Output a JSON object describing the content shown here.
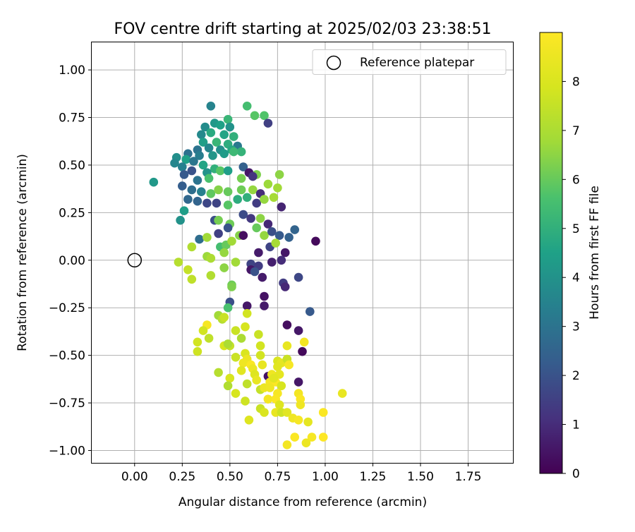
{
  "chart_data": {
    "type": "scatter",
    "title": "FOV centre drift starting at 2025/02/03 23:38:51",
    "xlabel": "Angular distance from reference (arcmin)",
    "ylabel": "Rotation from reference (arcmin)",
    "xlim": [
      -0.225,
      1.985
    ],
    "ylim": [
      -1.065,
      1.145
    ],
    "x_ticks": [
      0.0,
      0.25,
      0.5,
      0.75,
      1.0,
      1.25,
      1.5,
      1.75
    ],
    "x_tick_labels": [
      "0.00",
      "0.25",
      "0.50",
      "0.75",
      "1.00",
      "1.25",
      "1.50",
      "1.75"
    ],
    "y_ticks": [
      1.0,
      0.75,
      0.5,
      0.25,
      0.0,
      -0.25,
      -0.5,
      -0.75,
      -1.0
    ],
    "y_tick_labels": [
      "1.00",
      "0.75",
      "0.50",
      "0.25",
      "0.00",
      "−0.25",
      "−0.50",
      "−0.75",
      "−1.00"
    ],
    "grid": true,
    "legend": {
      "position": "top-right",
      "entries": [
        {
          "label": "Reference platepar",
          "marker": "open-circle"
        }
      ]
    },
    "reference_point": {
      "x": 0.0,
      "y": 0.0
    },
    "colorbar": {
      "label": "Hours from first FF file",
      "colormap": "viridis",
      "range": [
        0,
        9
      ],
      "ticks": [
        0,
        1,
        2,
        3,
        4,
        5,
        6,
        7,
        8
      ],
      "tick_labels": [
        "0",
        "1",
        "2",
        "3",
        "4",
        "5",
        "6",
        "7",
        "8"
      ]
    },
    "series": [
      {
        "name": "",
        "points": [
          [
            0.4,
            0.81,
            3.5
          ],
          [
            0.59,
            0.81,
            5.5
          ],
          [
            0.63,
            0.76,
            5.8
          ],
          [
            0.68,
            0.76,
            5.7
          ],
          [
            0.49,
            0.74,
            5.2
          ],
          [
            0.7,
            0.72,
            1.5
          ],
          [
            0.37,
            0.7,
            3.8
          ],
          [
            0.42,
            0.72,
            4.2
          ],
          [
            0.45,
            0.71,
            4.5
          ],
          [
            0.5,
            0.7,
            4.0
          ],
          [
            0.35,
            0.66,
            3.7
          ],
          [
            0.4,
            0.67,
            4.8
          ],
          [
            0.47,
            0.66,
            4.6
          ],
          [
            0.52,
            0.65,
            5.0
          ],
          [
            0.36,
            0.62,
            4.4
          ],
          [
            0.43,
            0.62,
            5.2
          ],
          [
            0.49,
            0.61,
            4.9
          ],
          [
            0.54,
            0.6,
            3.2
          ],
          [
            0.33,
            0.58,
            3.0
          ],
          [
            0.39,
            0.59,
            3.6
          ],
          [
            0.45,
            0.58,
            3.9
          ],
          [
            0.51,
            0.58,
            4.7
          ],
          [
            0.56,
            0.57,
            5.1
          ],
          [
            0.28,
            0.56,
            2.9
          ],
          [
            0.34,
            0.55,
            3.3
          ],
          [
            0.41,
            0.55,
            4.1
          ],
          [
            0.47,
            0.56,
            4.3
          ],
          [
            0.52,
            0.57,
            5.3
          ],
          [
            0.22,
            0.54,
            3.9
          ],
          [
            0.27,
            0.53,
            4.5
          ],
          [
            0.31,
            0.52,
            3.1
          ],
          [
            0.21,
            0.51,
            3.6
          ],
          [
            0.25,
            0.49,
            3.4
          ],
          [
            0.36,
            0.5,
            4.6
          ],
          [
            0.42,
            0.48,
            5.0
          ],
          [
            0.45,
            0.47,
            5.8
          ],
          [
            0.57,
            0.49,
            2.4
          ],
          [
            0.6,
            0.46,
            0.5
          ],
          [
            0.26,
            0.45,
            2.2
          ],
          [
            0.3,
            0.47,
            2.0
          ],
          [
            0.38,
            0.46,
            4.0
          ],
          [
            0.49,
            0.47,
            4.4
          ],
          [
            0.64,
            0.45,
            6.3
          ],
          [
            0.76,
            0.45,
            6.5
          ],
          [
            0.33,
            0.42,
            3.0
          ],
          [
            0.39,
            0.43,
            5.6
          ],
          [
            0.56,
            0.43,
            6.2
          ],
          [
            0.62,
            0.44,
            1.2
          ],
          [
            0.1,
            0.41,
            4.2
          ],
          [
            0.25,
            0.39,
            2.3
          ],
          [
            0.3,
            0.37,
            2.8
          ],
          [
            0.35,
            0.36,
            3.4
          ],
          [
            0.4,
            0.35,
            5.9
          ],
          [
            0.44,
            0.37,
            6.4
          ],
          [
            0.49,
            0.36,
            6.0
          ],
          [
            0.56,
            0.37,
            6.1
          ],
          [
            0.62,
            0.37,
            6.6
          ],
          [
            0.66,
            0.35,
            1.0
          ],
          [
            0.7,
            0.4,
            6.7
          ],
          [
            0.75,
            0.38,
            6.8
          ],
          [
            0.28,
            0.32,
            2.6
          ],
          [
            0.33,
            0.31,
            2.5
          ],
          [
            0.38,
            0.3,
            1.7
          ],
          [
            0.43,
            0.3,
            1.6
          ],
          [
            0.49,
            0.29,
            5.8
          ],
          [
            0.54,
            0.32,
            4.9
          ],
          [
            0.59,
            0.33,
            5.0
          ],
          [
            0.64,
            0.3,
            1.4
          ],
          [
            0.68,
            0.32,
            6.6
          ],
          [
            0.73,
            0.33,
            6.9
          ],
          [
            0.77,
            0.28,
            0.8
          ],
          [
            0.26,
            0.26,
            4.4
          ],
          [
            0.24,
            0.21,
            4.0
          ],
          [
            0.42,
            0.21,
            1.9
          ],
          [
            0.44,
            0.21,
            6.2
          ],
          [
            0.5,
            0.19,
            6.1
          ],
          [
            0.57,
            0.24,
            1.8
          ],
          [
            0.61,
            0.22,
            1.3
          ],
          [
            0.66,
            0.22,
            6.5
          ],
          [
            0.7,
            0.19,
            0.9
          ],
          [
            0.34,
            0.11,
            2.8
          ],
          [
            0.38,
            0.12,
            6.8
          ],
          [
            0.44,
            0.14,
            1.5
          ],
          [
            0.49,
            0.17,
            2.0
          ],
          [
            0.55,
            0.13,
            6.4
          ],
          [
            0.57,
            0.13,
            0.3
          ],
          [
            0.64,
            0.17,
            6.0
          ],
          [
            0.68,
            0.13,
            6.6
          ],
          [
            0.72,
            0.15,
            1.9
          ],
          [
            0.76,
            0.13,
            2.2
          ],
          [
            0.81,
            0.12,
            2.4
          ],
          [
            0.84,
            0.16,
            2.5
          ],
          [
            0.95,
            0.1,
            0.2
          ],
          [
            0.3,
            0.07,
            7.1
          ],
          [
            0.45,
            0.07,
            5.5
          ],
          [
            0.48,
            0.08,
            6.0
          ],
          [
            0.51,
            0.1,
            6.8
          ],
          [
            0.47,
            0.04,
            6.6
          ],
          [
            0.65,
            0.04,
            0.6
          ],
          [
            0.71,
            0.07,
            1.6
          ],
          [
            0.74,
            0.09,
            6.9
          ],
          [
            0.79,
            0.04,
            0.5
          ],
          [
            0.38,
            0.02,
            6.7
          ],
          [
            0.4,
            0.01,
            7.0
          ],
          [
            0.53,
            -0.01,
            6.8
          ],
          [
            0.61,
            -0.02,
            1.6
          ],
          [
            0.65,
            -0.03,
            1.4
          ],
          [
            0.72,
            -0.01,
            0.7
          ],
          [
            0.77,
            0.0,
            1.0
          ],
          [
            0.23,
            -0.01,
            7.2
          ],
          [
            0.28,
            -0.05,
            7.5
          ],
          [
            0.47,
            -0.04,
            6.5
          ],
          [
            0.61,
            -0.05,
            0.5
          ],
          [
            0.4,
            -0.08,
            7.1
          ],
          [
            0.3,
            -0.1,
            7.4
          ],
          [
            0.67,
            -0.09,
            0.6
          ],
          [
            0.63,
            -0.06,
            2.0
          ],
          [
            0.78,
            -0.12,
            1.4
          ],
          [
            0.79,
            -0.14,
            0.9
          ],
          [
            0.86,
            -0.09,
            1.7
          ],
          [
            0.51,
            -0.13,
            6.1
          ],
          [
            0.51,
            -0.14,
            6.3
          ],
          [
            0.68,
            -0.19,
            0.4
          ],
          [
            0.5,
            -0.22,
            1.9
          ],
          [
            0.49,
            -0.25,
            5.6
          ],
          [
            0.59,
            -0.24,
            0.5
          ],
          [
            0.68,
            -0.24,
            0.6
          ],
          [
            0.92,
            -0.27,
            2.2
          ],
          [
            0.59,
            -0.28,
            7.8
          ],
          [
            0.44,
            -0.29,
            6.8
          ],
          [
            0.46,
            -0.31,
            7.2
          ],
          [
            0.47,
            -0.3,
            7.6
          ],
          [
            0.38,
            -0.34,
            8.8
          ],
          [
            0.36,
            -0.37,
            7.8
          ],
          [
            0.53,
            -0.37,
            7.6
          ],
          [
            0.58,
            -0.35,
            7.9
          ],
          [
            0.8,
            -0.34,
            0.3
          ],
          [
            0.86,
            -0.37,
            0.5
          ],
          [
            0.39,
            -0.41,
            7.4
          ],
          [
            0.56,
            -0.41,
            7.0
          ],
          [
            0.65,
            -0.39,
            7.6
          ],
          [
            0.33,
            -0.43,
            7.8
          ],
          [
            0.47,
            -0.45,
            7.9
          ],
          [
            0.5,
            -0.45,
            7.5
          ],
          [
            0.49,
            -0.44,
            7.0
          ],
          [
            0.66,
            -0.45,
            7.8
          ],
          [
            0.8,
            -0.45,
            8.4
          ],
          [
            0.89,
            -0.43,
            8.7
          ],
          [
            0.33,
            -0.48,
            7.7
          ],
          [
            0.58,
            -0.49,
            8.0
          ],
          [
            0.88,
            -0.48,
            0.2
          ],
          [
            0.53,
            -0.51,
            7.6
          ],
          [
            0.59,
            -0.52,
            8.5
          ],
          [
            0.66,
            -0.5,
            7.8
          ],
          [
            0.75,
            -0.53,
            8.0
          ],
          [
            0.77,
            -0.54,
            8.3
          ],
          [
            0.8,
            -0.52,
            7.6
          ],
          [
            0.57,
            -0.54,
            8.6
          ],
          [
            0.67,
            -0.55,
            8.4
          ],
          [
            0.61,
            -0.55,
            8.9
          ],
          [
            0.75,
            -0.56,
            8.2
          ],
          [
            0.81,
            -0.55,
            8.8
          ],
          [
            0.44,
            -0.59,
            7.2
          ],
          [
            0.56,
            -0.58,
            8.2
          ],
          [
            0.62,
            -0.57,
            8.5
          ],
          [
            0.63,
            -0.6,
            8.1
          ],
          [
            0.7,
            -0.61,
            0.4
          ],
          [
            0.72,
            -0.6,
            8.6
          ],
          [
            0.76,
            -0.6,
            8.3
          ],
          [
            0.86,
            -0.64,
            0.5
          ],
          [
            0.5,
            -0.62,
            7.9
          ],
          [
            0.49,
            -0.66,
            7.1
          ],
          [
            0.59,
            -0.65,
            7.4
          ],
          [
            0.64,
            -0.63,
            8.4
          ],
          [
            0.71,
            -0.64,
            8.7
          ],
          [
            0.74,
            -0.64,
            8.9
          ],
          [
            0.73,
            -0.62,
            8.2
          ],
          [
            0.53,
            -0.7,
            7.9
          ],
          [
            0.66,
            -0.68,
            7.5
          ],
          [
            0.68,
            -0.67,
            8.5
          ],
          [
            0.71,
            -0.67,
            8.6
          ],
          [
            0.75,
            -0.7,
            8.8
          ],
          [
            0.77,
            -0.66,
            7.9
          ],
          [
            0.86,
            -0.7,
            8.7
          ],
          [
            1.09,
            -0.7,
            8.4
          ],
          [
            0.58,
            -0.74,
            7.7
          ],
          [
            0.7,
            -0.73,
            8.7
          ],
          [
            0.74,
            -0.73,
            8.9
          ],
          [
            0.76,
            -0.76,
            8.1
          ],
          [
            0.87,
            -0.73,
            8.9
          ],
          [
            0.87,
            -0.76,
            8.6
          ],
          [
            0.66,
            -0.78,
            7.6
          ],
          [
            0.68,
            -0.8,
            8.0
          ],
          [
            0.74,
            -0.8,
            8.4
          ],
          [
            0.77,
            -0.8,
            7.7
          ],
          [
            0.8,
            -0.8,
            8.2
          ],
          [
            0.83,
            -0.83,
            8.6
          ],
          [
            0.86,
            -0.84,
            8.8
          ],
          [
            0.91,
            -0.85,
            8.3
          ],
          [
            0.99,
            -0.8,
            8.9
          ],
          [
            0.6,
            -0.84,
            8.1
          ],
          [
            0.84,
            -0.93,
            8.9
          ],
          [
            0.93,
            -0.93,
            8.8
          ],
          [
            0.99,
            -0.93,
            9.0
          ],
          [
            0.8,
            -0.97,
            8.7
          ],
          [
            0.9,
            -0.96,
            8.5
          ]
        ]
      }
    ]
  }
}
